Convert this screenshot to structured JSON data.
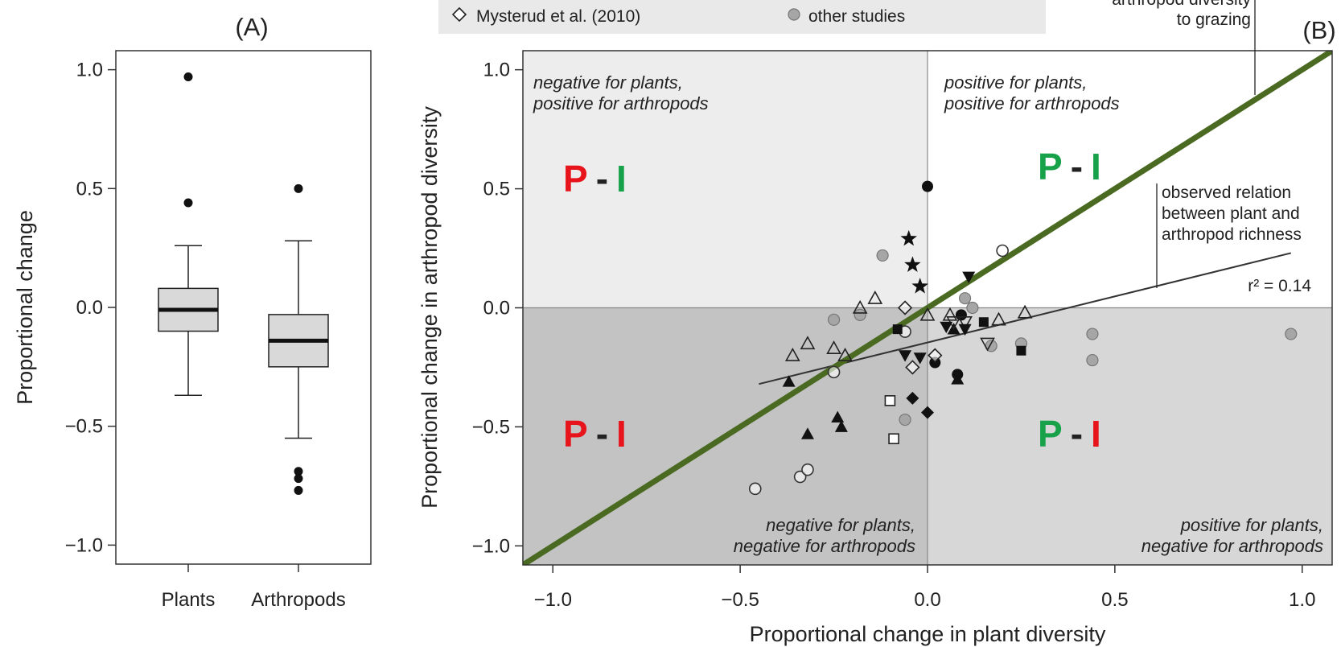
{
  "panel_a": {
    "label": "(A)",
    "ylabel": "Proportional change",
    "y_ticks": [
      "1.0",
      "0.5",
      "0.0",
      "−0.5",
      "−1.0"
    ],
    "categories": [
      "Plants",
      "Arthropods"
    ]
  },
  "panel_b": {
    "label": "(B)",
    "xlabel": "Proportional change in plant diversity",
    "ylabel": "Proportional change in arthropod diversity",
    "x_ticks": [
      "−1.0",
      "−0.5",
      "0.0",
      "0.5",
      "1.0"
    ],
    "y_ticks": [
      "1.0",
      "0.5",
      "0.0",
      "−0.5",
      "−1.0"
    ],
    "quadrants": {
      "top_left": [
        "negative for plants,",
        "positive for arthropods"
      ],
      "top_right": [
        "positive for plants,",
        "positive for arthropods"
      ],
      "bottom_left": [
        "negative for plants,",
        "negative for arthropods"
      ],
      "bottom_right": [
        "positive for plants,",
        "negative for arthropods"
      ]
    },
    "annotations": {
      "one_to_one": [
        "arthropod diversity",
        "to grazing"
      ],
      "observed": [
        "observed relation",
        "between plant and",
        "arthropod richness"
      ],
      "r2": "r² = 0.14"
    },
    "pi_markers": {
      "p": "P",
      "dash": "-",
      "i": "I"
    },
    "legend": {
      "item1": "Mysterud et al. (2010)",
      "item2": "other studies"
    }
  },
  "colors": {
    "red": "#e8141c",
    "green": "#17a24a",
    "olive_line": "#4a6a22",
    "quad_light": "#ededed",
    "quad_mid": "#d7d7d7",
    "quad_dark": "#c3c3c3",
    "box_fill": "#d9d9d9",
    "marker_gray": "#a6a6a6"
  },
  "chart_data": [
    {
      "type": "box",
      "title": "(A)",
      "ylabel": "Proportional change",
      "ylim": [
        -1.08,
        1.08
      ],
      "series": [
        {
          "name": "Plants",
          "whisker_low": -0.37,
          "q1": -0.1,
          "median": -0.01,
          "q3": 0.08,
          "whisker_high": 0.26,
          "outliers": [
            0.97,
            0.44
          ]
        },
        {
          "name": "Arthropods",
          "whisker_low": -0.55,
          "q1": -0.25,
          "median": -0.14,
          "q3": -0.03,
          "whisker_high": 0.28,
          "outliers": [
            0.5,
            -0.69,
            -0.72,
            -0.77
          ]
        }
      ]
    },
    {
      "type": "scatter",
      "title": "(B)",
      "xlabel": "Proportional change in plant diversity",
      "ylabel": "Proportional change in arthropod diversity",
      "xlim": [
        -1.08,
        1.08
      ],
      "ylim": [
        -1.08,
        1.08
      ],
      "reference_line": {
        "label": "arthropod diversity to grazing",
        "slope": 1,
        "intercept": 0
      },
      "fit_line": {
        "label": "observed relation between plant and arthropod richness",
        "r2": 0.14,
        "x": [
          -0.45,
          0.97
        ],
        "y": [
          -0.32,
          0.23
        ]
      },
      "series": [
        {
          "marker": "open-circle",
          "points": [
            [
              -0.46,
              -0.76
            ],
            [
              -0.34,
              -0.71
            ],
            [
              -0.32,
              -0.68
            ],
            [
              -0.25,
              -0.27
            ],
            [
              -0.06,
              -0.1
            ],
            [
              0.2,
              0.24
            ]
          ]
        },
        {
          "marker": "gray-circle",
          "points": [
            [
              -0.12,
              0.22
            ],
            [
              -0.25,
              -0.05
            ],
            [
              -0.18,
              -0.03
            ],
            [
              -0.06,
              -0.47
            ],
            [
              0.1,
              0.04
            ],
            [
              0.12,
              0.0
            ],
            [
              0.17,
              -0.16
            ],
            [
              0.25,
              -0.15
            ],
            [
              0.44,
              -0.11
            ],
            [
              0.44,
              -0.22
            ],
            [
              0.97,
              -0.11
            ]
          ]
        },
        {
          "marker": "filled-circle",
          "points": [
            [
              0.0,
              0.51
            ],
            [
              0.09,
              -0.03
            ],
            [
              0.02,
              -0.23
            ],
            [
              0.08,
              -0.28
            ]
          ]
        },
        {
          "marker": "open-triangle",
          "points": [
            [
              -0.36,
              -0.2
            ],
            [
              -0.32,
              -0.15
            ],
            [
              -0.25,
              -0.17
            ],
            [
              -0.22,
              -0.2
            ],
            [
              -0.18,
              0.0
            ],
            [
              -0.14,
              0.04
            ],
            [
              0.0,
              -0.03
            ],
            [
              0.06,
              -0.03
            ],
            [
              0.19,
              -0.05
            ],
            [
              0.26,
              -0.02
            ]
          ]
        },
        {
          "marker": "filled-triangle",
          "points": [
            [
              -0.37,
              -0.31
            ],
            [
              -0.32,
              -0.53
            ],
            [
              -0.24,
              -0.46
            ],
            [
              -0.23,
              -0.5
            ],
            [
              0.07,
              -0.09
            ],
            [
              0.08,
              -0.3
            ]
          ]
        },
        {
          "marker": "open-triangle-down",
          "points": [
            [
              0.07,
              -0.06
            ],
            [
              0.1,
              -0.06
            ],
            [
              0.16,
              -0.15
            ]
          ]
        },
        {
          "marker": "filled-triangle-down",
          "points": [
            [
              -0.06,
              -0.2
            ],
            [
              -0.02,
              -0.21
            ],
            [
              0.05,
              -0.08
            ],
            [
              0.11,
              0.13
            ],
            [
              0.1,
              -0.09
            ]
          ]
        },
        {
          "marker": "open-square",
          "points": [
            [
              -0.1,
              -0.39
            ],
            [
              -0.09,
              -0.55
            ]
          ]
        },
        {
          "marker": "filled-square",
          "points": [
            [
              -0.08,
              -0.09
            ],
            [
              0.15,
              -0.06
            ],
            [
              0.25,
              -0.18
            ]
          ]
        },
        {
          "marker": "open-diamond",
          "points": [
            [
              -0.06,
              0.0
            ],
            [
              -0.04,
              -0.25
            ],
            [
              0.02,
              -0.2
            ]
          ]
        },
        {
          "marker": "filled-diamond",
          "points": [
            [
              -0.04,
              -0.38
            ],
            [
              0.0,
              -0.44
            ]
          ]
        },
        {
          "marker": "star",
          "points": [
            [
              -0.05,
              0.29
            ],
            [
              -0.04,
              0.18
            ],
            [
              -0.02,
              0.09
            ]
          ]
        }
      ]
    }
  ]
}
